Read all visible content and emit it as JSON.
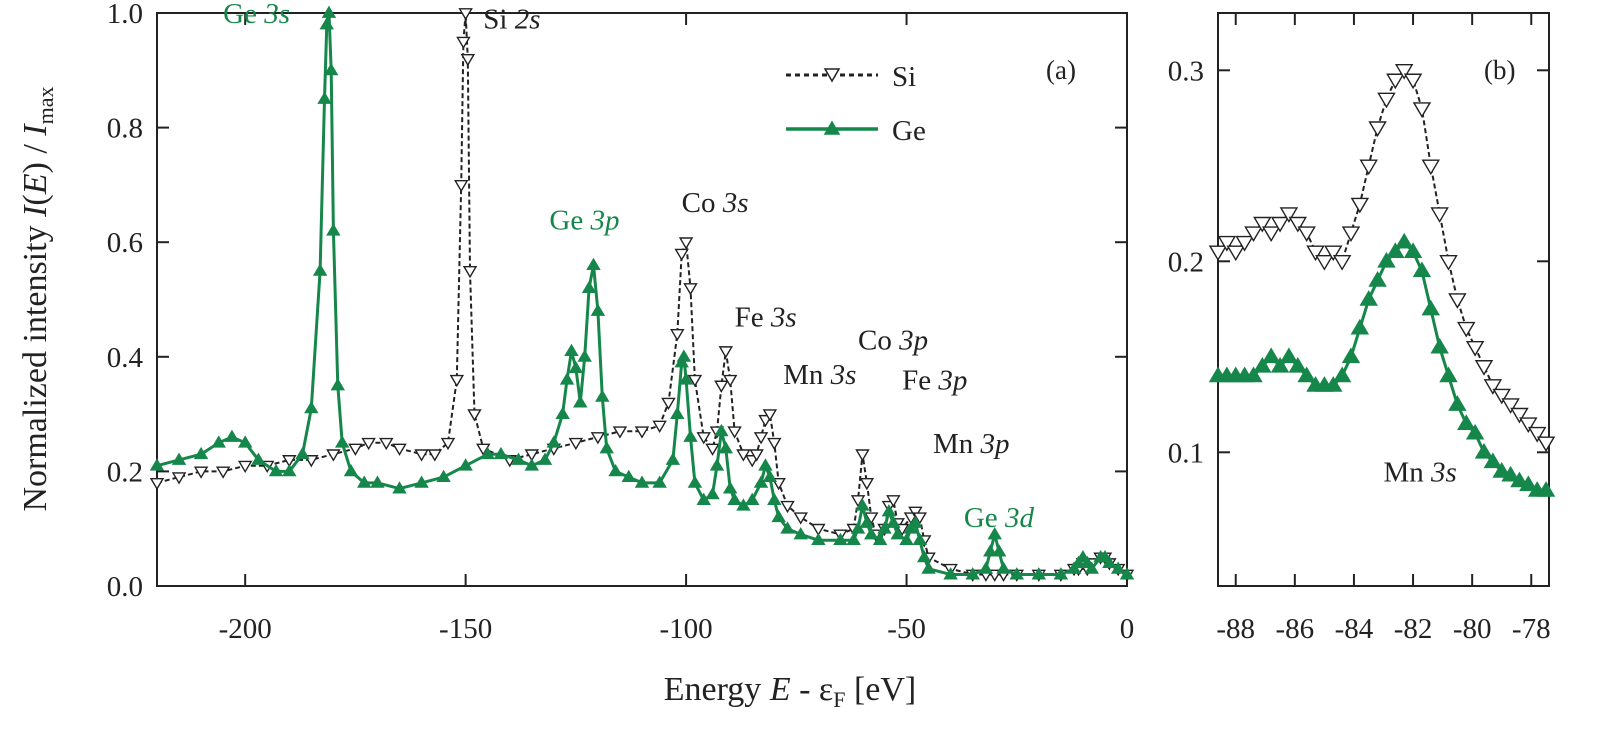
{
  "colors": {
    "si": "#222222",
    "ge": "#16874a",
    "axis": "#222222"
  },
  "axis_titles": {
    "y": {
      "main": "Normalized intensity ",
      "func": "I",
      "paren_open": "(",
      "arg": "E",
      "paren_close": ")",
      "slash": " / ",
      "imax": "I",
      "imax_sub": "max"
    },
    "x": {
      "main": "Energy  ",
      "var": "E",
      "minus": " - ε",
      "eps_sub": "F",
      "unit": " [eV]"
    }
  },
  "chart_data": [
    {
      "panel": "(a)",
      "type": "line",
      "xlabel": "Energy E - εF [eV]",
      "ylabel": "Normalized intensity I(E) / Imax",
      "xlim": [
        -220,
        0
      ],
      "ylim": [
        0,
        1.0
      ],
      "xticks": [
        -200,
        -150,
        -100,
        -50,
        0
      ],
      "xtick_labels": [
        "-200",
        "-150",
        "-100",
        "-50",
        "0"
      ],
      "yticks": [
        0.0,
        0.2,
        0.4,
        0.6,
        0.8,
        1.0
      ],
      "ytick_labels": [
        "0.0",
        "0.2",
        "0.4",
        "0.6",
        "0.8",
        "1.0"
      ],
      "grid": false,
      "legend_position": "top-right",
      "legend": [
        {
          "label": "Si",
          "series": "Si",
          "style": "dashed",
          "marker": "triangle-down-open"
        },
        {
          "label": "Ge",
          "series": "Ge",
          "style": "solid",
          "marker": "triangle-up-filled"
        }
      ],
      "annotations": [
        {
          "text": "Ge ",
          "italic": "3s",
          "color": "ge",
          "x": -205,
          "y": 1.0
        },
        {
          "text": "Si ",
          "italic": "2s",
          "color": "si",
          "x": -146,
          "y": 0.99
        },
        {
          "text": "Ge ",
          "italic": "3p",
          "color": "ge",
          "x": -131,
          "y": 0.64
        },
        {
          "text": "Co ",
          "italic": "3s",
          "color": "si",
          "x": -101,
          "y": 0.67
        },
        {
          "text": "Fe ",
          "italic": "3s",
          "color": "si",
          "x": -89,
          "y": 0.47
        },
        {
          "text": "Mn ",
          "italic": "3s",
          "color": "si",
          "x": -78,
          "y": 0.37
        },
        {
          "text": "Co ",
          "italic": "3p",
          "color": "si",
          "x": -61,
          "y": 0.43
        },
        {
          "text": "Fe ",
          "italic": "3p",
          "color": "si",
          "x": -51,
          "y": 0.36
        },
        {
          "text": "Mn ",
          "italic": "3p",
          "color": "si",
          "x": -44,
          "y": 0.25
        },
        {
          "text": "Ge ",
          "italic": "3d",
          "color": "ge",
          "x": -37,
          "y": 0.12
        }
      ],
      "series": [
        {
          "name": "Si",
          "x": [
            -220,
            -215,
            -210,
            -205,
            -200,
            -195,
            -190,
            -185,
            -180,
            -175,
            -172,
            -168,
            -165,
            -160,
            -157,
            -154,
            -152,
            -151,
            -150.5,
            -150,
            -149.5,
            -149,
            -148,
            -146,
            -140,
            -135,
            -130,
            -125,
            -120,
            -115,
            -110,
            -106,
            -104,
            -102,
            -101,
            -100,
            -99,
            -98,
            -96,
            -94,
            -93,
            -92,
            -91,
            -90,
            -89,
            -87,
            -85,
            -84,
            -83,
            -82,
            -81,
            -80,
            -79,
            -77,
            -74,
            -70,
            -65,
            -62,
            -61,
            -60,
            -59,
            -58,
            -57,
            -55,
            -54,
            -53,
            -52,
            -51,
            -49,
            -48,
            -47,
            -46,
            -45,
            -40,
            -35,
            -32,
            -30,
            -28,
            -25,
            -20,
            -15,
            -12,
            -11,
            -10,
            -9,
            -8,
            -6,
            -5,
            -4,
            -2,
            0
          ],
          "y": [
            0.18,
            0.19,
            0.2,
            0.2,
            0.21,
            0.21,
            0.22,
            0.22,
            0.23,
            0.24,
            0.25,
            0.25,
            0.24,
            0.23,
            0.23,
            0.25,
            0.36,
            0.7,
            0.95,
            1.0,
            0.92,
            0.55,
            0.3,
            0.24,
            0.22,
            0.23,
            0.24,
            0.25,
            0.26,
            0.27,
            0.27,
            0.28,
            0.32,
            0.44,
            0.58,
            0.6,
            0.52,
            0.36,
            0.26,
            0.24,
            0.27,
            0.35,
            0.41,
            0.36,
            0.27,
            0.23,
            0.22,
            0.23,
            0.26,
            0.29,
            0.3,
            0.25,
            0.18,
            0.14,
            0.12,
            0.1,
            0.09,
            0.1,
            0.15,
            0.23,
            0.18,
            0.12,
            0.09,
            0.1,
            0.14,
            0.15,
            0.11,
            0.1,
            0.12,
            0.13,
            0.12,
            0.08,
            0.05,
            0.03,
            0.02,
            0.02,
            0.02,
            0.02,
            0.02,
            0.02,
            0.02,
            0.03,
            0.03,
            0.04,
            0.03,
            0.04,
            0.05,
            0.05,
            0.04,
            0.03,
            0.02
          ]
        },
        {
          "name": "Ge",
          "x": [
            -220,
            -215,
            -210,
            -206,
            -203,
            -200,
            -197,
            -193,
            -190,
            -187,
            -185,
            -183,
            -182,
            -181.5,
            -181,
            -180.5,
            -180,
            -179,
            -178,
            -176,
            -173,
            -170,
            -165,
            -160,
            -155,
            -150,
            -145,
            -142,
            -138,
            -135,
            -132,
            -130,
            -128,
            -127,
            -126,
            -125,
            -124,
            -123,
            -122,
            -121,
            -120,
            -119,
            -118,
            -116,
            -113,
            -110,
            -106,
            -103,
            -102,
            -101,
            -100.5,
            -100,
            -99,
            -98,
            -96,
            -94,
            -93,
            -92,
            -91,
            -90,
            -89,
            -87,
            -85,
            -83,
            -82,
            -81,
            -80,
            -79,
            -77,
            -74,
            -70,
            -65,
            -62,
            -61,
            -60,
            -59,
            -58,
            -56,
            -55,
            -54,
            -53,
            -52,
            -50,
            -49,
            -48,
            -47,
            -46,
            -45,
            -40,
            -35,
            -32,
            -31,
            -30,
            -29,
            -28,
            -25,
            -20,
            -15,
            -12,
            -11,
            -10,
            -9,
            -8,
            -6,
            -5,
            -4,
            -2,
            0
          ],
          "y": [
            0.21,
            0.22,
            0.23,
            0.25,
            0.26,
            0.25,
            0.22,
            0.2,
            0.2,
            0.23,
            0.31,
            0.55,
            0.85,
            0.98,
            1.0,
            0.9,
            0.62,
            0.35,
            0.25,
            0.2,
            0.18,
            0.18,
            0.17,
            0.18,
            0.19,
            0.21,
            0.23,
            0.23,
            0.22,
            0.21,
            0.22,
            0.25,
            0.3,
            0.36,
            0.41,
            0.38,
            0.32,
            0.4,
            0.52,
            0.56,
            0.48,
            0.33,
            0.24,
            0.2,
            0.19,
            0.18,
            0.18,
            0.22,
            0.3,
            0.39,
            0.4,
            0.36,
            0.26,
            0.18,
            0.15,
            0.16,
            0.21,
            0.27,
            0.24,
            0.17,
            0.15,
            0.14,
            0.15,
            0.18,
            0.21,
            0.19,
            0.15,
            0.12,
            0.1,
            0.09,
            0.08,
            0.08,
            0.08,
            0.1,
            0.14,
            0.11,
            0.09,
            0.08,
            0.1,
            0.13,
            0.11,
            0.09,
            0.08,
            0.1,
            0.11,
            0.08,
            0.05,
            0.03,
            0.02,
            0.02,
            0.03,
            0.06,
            0.09,
            0.06,
            0.03,
            0.02,
            0.02,
            0.02,
            0.03,
            0.04,
            0.05,
            0.04,
            0.03,
            0.05,
            0.05,
            0.04,
            0.03,
            0.02
          ]
        }
      ]
    },
    {
      "panel": "(b)",
      "type": "scatter",
      "xlim": [
        -88.6,
        -77.4
      ],
      "ylim": [
        0.03,
        0.33
      ],
      "xticks": [
        -88,
        -86,
        -84,
        -82,
        -80,
        -78
      ],
      "xtick_labels": [
        "-88",
        "-86",
        "-84",
        "-82",
        "-80",
        "-78"
      ],
      "yticks": [
        0.1,
        0.2,
        0.3
      ],
      "ytick_labels": [
        "0.1",
        "0.2",
        "0.3"
      ],
      "grid": false,
      "annotations": [
        {
          "text": "Mn ",
          "italic": "3s",
          "color": "si",
          "x": -83.0,
          "y": 0.09
        }
      ],
      "series": [
        {
          "name": "Si",
          "x": [
            -88.6,
            -88.3,
            -88.0,
            -87.7,
            -87.4,
            -87.1,
            -86.8,
            -86.5,
            -86.2,
            -85.9,
            -85.6,
            -85.3,
            -85.0,
            -84.7,
            -84.4,
            -84.1,
            -83.8,
            -83.5,
            -83.2,
            -82.9,
            -82.6,
            -82.3,
            -82.0,
            -81.7,
            -81.4,
            -81.1,
            -80.8,
            -80.5,
            -80.2,
            -79.9,
            -79.6,
            -79.3,
            -79.0,
            -78.7,
            -78.4,
            -78.1,
            -77.8,
            -77.5
          ],
          "y": [
            0.205,
            0.21,
            0.205,
            0.21,
            0.215,
            0.22,
            0.215,
            0.22,
            0.225,
            0.22,
            0.215,
            0.205,
            0.2,
            0.205,
            0.2,
            0.215,
            0.23,
            0.25,
            0.27,
            0.285,
            0.295,
            0.3,
            0.295,
            0.28,
            0.25,
            0.225,
            0.2,
            0.18,
            0.165,
            0.155,
            0.145,
            0.135,
            0.13,
            0.125,
            0.12,
            0.115,
            0.11,
            0.105
          ]
        },
        {
          "name": "Ge",
          "x": [
            -88.6,
            -88.3,
            -88.0,
            -87.7,
            -87.4,
            -87.1,
            -86.8,
            -86.5,
            -86.2,
            -85.9,
            -85.6,
            -85.3,
            -85.0,
            -84.7,
            -84.4,
            -84.1,
            -83.8,
            -83.5,
            -83.2,
            -82.9,
            -82.6,
            -82.3,
            -82.0,
            -81.7,
            -81.4,
            -81.1,
            -80.8,
            -80.5,
            -80.2,
            -79.9,
            -79.6,
            -79.3,
            -79.0,
            -78.7,
            -78.4,
            -78.1,
            -77.8,
            -77.5
          ],
          "y": [
            0.14,
            0.14,
            0.14,
            0.14,
            0.14,
            0.145,
            0.15,
            0.145,
            0.15,
            0.145,
            0.14,
            0.135,
            0.135,
            0.135,
            0.14,
            0.15,
            0.165,
            0.18,
            0.19,
            0.2,
            0.205,
            0.21,
            0.205,
            0.195,
            0.175,
            0.155,
            0.14,
            0.125,
            0.115,
            0.11,
            0.1,
            0.095,
            0.09,
            0.088,
            0.085,
            0.083,
            0.08,
            0.08
          ]
        }
      ]
    }
  ]
}
